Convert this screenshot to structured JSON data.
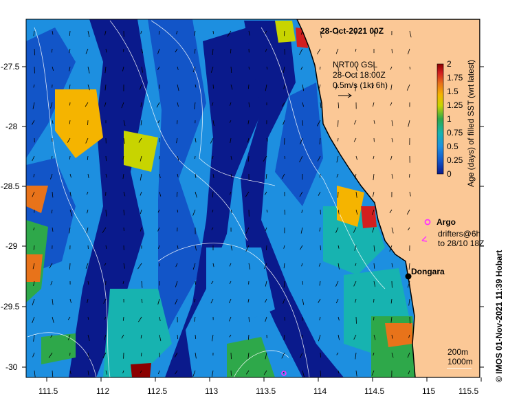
{
  "title": "28-Oct-2021 00Z",
  "current_legend": {
    "line1": "NRT00 GSL",
    "line2": "28-Oct 18:00Z",
    "line3": "0.5m/s (1kt 6h)"
  },
  "colorbar": {
    "label": "Age (days) of filled SST (wrt latest)",
    "ticks": [
      "2",
      "1.75",
      "1.5",
      "1.25",
      "1",
      "0.75",
      "0.5",
      "0.25",
      "0"
    ],
    "colors": [
      "#8b0000",
      "#d21f1f",
      "#e8731a",
      "#f5b400",
      "#c8d400",
      "#2ea84a",
      "#17b3b0",
      "#1d8fe0",
      "#1255c8",
      "#0a1a8c"
    ]
  },
  "legend": {
    "argo_label": "Argo",
    "drifters_line1": "drifters@6h",
    "drifters_line2": "to 28/10 18Z",
    "argo_color": "#ff33ff"
  },
  "place": {
    "name": "Dongara"
  },
  "contours": {
    "line1": "200m",
    "line2": "1000m"
  },
  "credit": "© IMOS 01-Nov-2021 11:39 Hobart",
  "axes": {
    "x_ticks": [
      "111.5",
      "112",
      "112.5",
      "113",
      "113.5",
      "114",
      "114.5",
      "115",
      "115.5"
    ],
    "y_ticks": [
      "-27.5",
      "-28",
      "-28.5",
      "-29",
      "-29.5",
      "-30"
    ]
  },
  "colors": {
    "land": "#fbc896",
    "deep": "#0a1a8c",
    "mid": "#1255c8",
    "light": "#1d8fe0",
    "cyan": "#17b3b0",
    "green": "#2ea84a",
    "yellow": "#f5b400",
    "orange": "#e8731a",
    "red": "#d21f1f",
    "darkred": "#8b0000"
  }
}
